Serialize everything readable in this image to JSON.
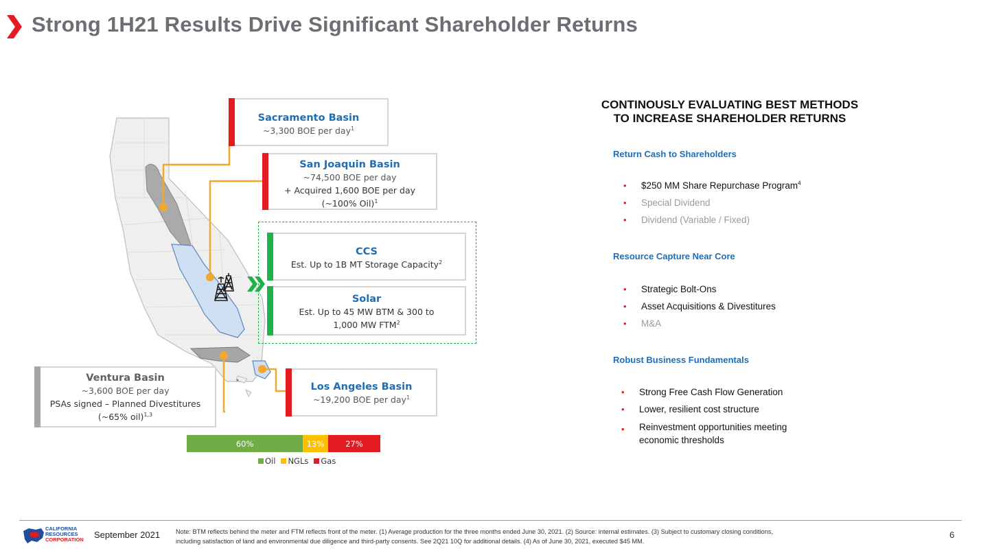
{
  "title": "Strong 1H21 Results Drive Significant Shareholder Returns",
  "colors": {
    "accent_red": "#e31b23",
    "blue": "#1f6eb4",
    "green": "#1fb24a",
    "oil": "#70ad47",
    "ngls": "#ffc000",
    "gas": "#e31b23",
    "title_grey": "#6b6e72",
    "connector_orange": "#f2a72e"
  },
  "basins": {
    "sacramento": {
      "name": "Sacramento Basin",
      "line1": "~3,300 BOE per day",
      "sup1": "1"
    },
    "san_joaquin": {
      "name": "San Joaquin Basin",
      "line1": "~74,500 BOE per day",
      "line2": "+ Acquired 1,600 BOE per day",
      "line3": "(~100% Oil)",
      "sup3": "1"
    },
    "ccs": {
      "name": "CCS",
      "line1": "Est. Up to 1B MT Storage Capacity",
      "sup1": "2"
    },
    "solar": {
      "name": "Solar",
      "line1": "Est. Up to 45 MW BTM & 300 to",
      "line2": "1,000 MW FTM",
      "sup2": "2"
    },
    "ventura": {
      "name": "Ventura Basin",
      "line1": "~3,600 BOE per day",
      "line2": "PSAs signed – Planned Divestitures",
      "line3": "(~65% oil)",
      "sup3": "1,3"
    },
    "los_angeles": {
      "name": "Los Angeles Basin",
      "line1": "~19,200 BOE per day",
      "sup1": "1"
    }
  },
  "chart_data": {
    "type": "bar",
    "orientation": "horizontal-stacked",
    "categories": [
      "Oil",
      "NGLs",
      "Gas"
    ],
    "values": [
      60,
      13,
      27
    ],
    "labels": [
      "60%",
      "13%",
      "27%"
    ],
    "legend": [
      "Oil",
      "NGLs",
      "Gas"
    ],
    "legend_placement": "bottom"
  },
  "right": {
    "heading_line1": "CONTINOUSLY EVALUATING BEST METHODS",
    "heading_line2": "TO INCREASE SHAREHOLDER RETURNS",
    "sections": [
      {
        "title": "Return Cash to Shareholders",
        "items": [
          {
            "text": "$250 MM Share Repurchase Program",
            "sup": "4",
            "muted": false
          },
          {
            "text": "Special Dividend",
            "muted": true
          },
          {
            "text": "Dividend (Variable / Fixed)",
            "muted": true
          }
        ]
      },
      {
        "title": "Resource Capture Near Core",
        "items": [
          {
            "text": "Strategic Bolt-Ons",
            "muted": false
          },
          {
            "text": "Asset Acquisitions & Divestitures",
            "muted": false
          },
          {
            "text": "M&A",
            "muted": true
          }
        ]
      },
      {
        "title": "Robust Business Fundamentals",
        "items": [
          {
            "text": "Strong Free Cash Flow Generation",
            "muted": false
          },
          {
            "text": "Lower, resilient cost structure",
            "muted": false
          },
          {
            "text": "Reinvestment opportunities meeting",
            "text2": "economic thresholds",
            "muted": false
          }
        ]
      }
    ]
  },
  "footer": {
    "logo_line1": "CALIFORNIA",
    "logo_line2": "RESOURCES",
    "logo_line3": "CORPORATION",
    "date": "September 2021",
    "note_line1": "Note: BTM reflects behind the meter and FTM reflects front of the meter. (1) Average production for the three months ended June 30, 2021. (2) Source: internal estimates. (3) Subject to customary closing conditions,",
    "note_line2": "including satisfaction of land and environmental due diligence and third-party consents. See 2Q21 10Q for additional details. (4) As of June 30, 2021, executed $45 MM.",
    "page": "6"
  }
}
